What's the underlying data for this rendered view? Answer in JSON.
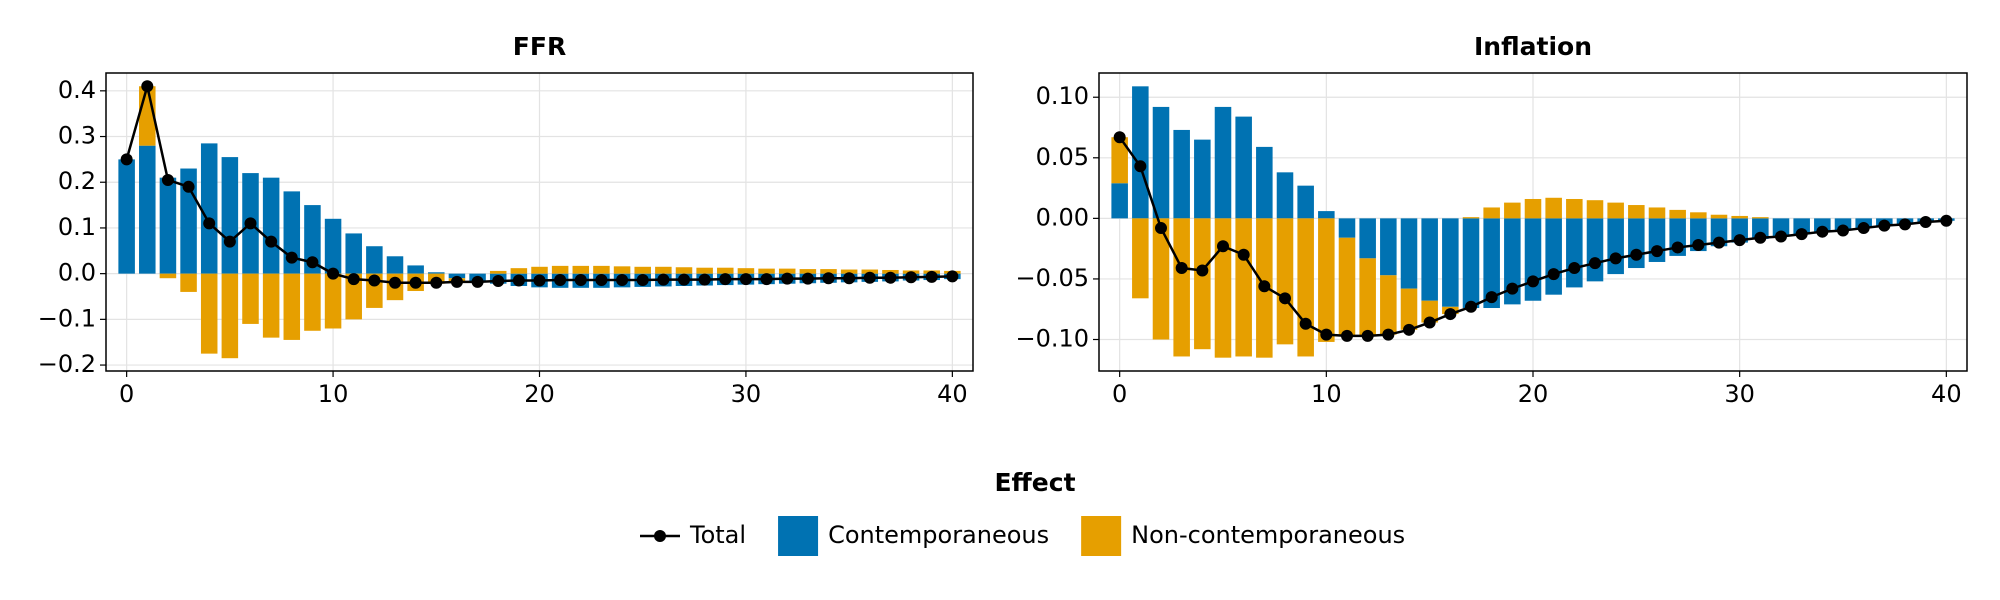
{
  "chart_data": [
    {
      "type": "bar",
      "title": "FFR",
      "stacked": true,
      "grid": true,
      "x": [
        0,
        1,
        2,
        3,
        4,
        5,
        6,
        7,
        8,
        9,
        10,
        11,
        12,
        13,
        14,
        15,
        16,
        17,
        18,
        19,
        20,
        21,
        22,
        23,
        24,
        25,
        26,
        27,
        28,
        29,
        30,
        31,
        32,
        33,
        34,
        35,
        36,
        37,
        38,
        39,
        40
      ],
      "xlim": [
        -1,
        41
      ],
      "xticks": [
        0,
        10,
        20,
        30,
        40
      ],
      "ylim": [
        -0.213,
        0.439
      ],
      "yticks": [
        {
          "value": -0.2,
          "label": "−0.2"
        },
        {
          "value": -0.1,
          "label": "−0.1"
        },
        {
          "value": 0,
          "label": "0.0"
        },
        0.1,
        0.2,
        0.3,
        0.4
      ],
      "series": [
        {
          "name": "Total",
          "kind": "line",
          "color": "#000000",
          "values": [
            0.25,
            0.41,
            0.205,
            0.19,
            0.11,
            0.07,
            0.11,
            0.07,
            0.035,
            0.025,
            0.0,
            -0.012,
            -0.015,
            -0.02,
            -0.02,
            -0.02,
            -0.018,
            -0.018,
            -0.016,
            -0.015,
            -0.015,
            -0.014,
            -0.014,
            -0.014,
            -0.014,
            -0.014,
            -0.013,
            -0.013,
            -0.013,
            -0.012,
            -0.012,
            -0.012,
            -0.011,
            -0.011,
            -0.01,
            -0.01,
            -0.009,
            -0.009,
            -0.008,
            -0.007,
            -0.006
          ]
        },
        {
          "name": "Contemporaneous",
          "kind": "bar",
          "color": "#0072b2",
          "values": [
            0.25,
            0.28,
            0.21,
            0.23,
            0.285,
            0.255,
            0.22,
            0.21,
            0.18,
            0.15,
            0.12,
            0.088,
            0.06,
            0.038,
            0.018,
            0.003,
            -0.01,
            -0.018,
            -0.022,
            -0.027,
            -0.03,
            -0.031,
            -0.031,
            -0.031,
            -0.03,
            -0.029,
            -0.028,
            -0.027,
            -0.026,
            -0.025,
            -0.024,
            -0.023,
            -0.022,
            -0.021,
            -0.02,
            -0.019,
            -0.018,
            -0.017,
            -0.015,
            -0.014,
            -0.012
          ]
        },
        {
          "name": "Non-contemporaneous",
          "kind": "bar",
          "color": "#e69f00",
          "values": [
            0.0,
            0.13,
            -0.01,
            -0.04,
            -0.175,
            -0.185,
            -0.11,
            -0.14,
            -0.145,
            -0.125,
            -0.12,
            -0.1,
            -0.075,
            -0.058,
            -0.038,
            -0.022,
            -0.008,
            0.0,
            0.006,
            0.012,
            0.015,
            0.017,
            0.017,
            0.017,
            0.016,
            0.015,
            0.015,
            0.014,
            0.013,
            0.013,
            0.012,
            0.011,
            0.011,
            0.01,
            0.01,
            0.009,
            0.009,
            0.008,
            0.007,
            0.007,
            0.006
          ]
        }
      ]
    },
    {
      "type": "bar",
      "title": "Inflation",
      "stacked": true,
      "grid": true,
      "x": [
        0,
        1,
        2,
        3,
        4,
        5,
        6,
        7,
        8,
        9,
        10,
        11,
        12,
        13,
        14,
        15,
        16,
        17,
        18,
        19,
        20,
        21,
        22,
        23,
        24,
        25,
        26,
        27,
        28,
        29,
        30,
        31,
        32,
        33,
        34,
        35,
        36,
        37,
        38,
        39,
        40
      ],
      "xlim": [
        -1,
        41
      ],
      "xticks": [
        0,
        10,
        20,
        30,
        40
      ],
      "ylim": [
        -0.126,
        0.12
      ],
      "yticks": [
        {
          "value": -0.1,
          "label": "−0.10"
        },
        {
          "value": -0.05,
          "label": "−0.05"
        },
        {
          "value": 0,
          "label": "0.00"
        },
        0.05,
        {
          "value": 0.1,
          "label": "0.10"
        }
      ],
      "series": [
        {
          "name": "Total",
          "kind": "line",
          "color": "#000000",
          "values": [
            0.067,
            0.043,
            -0.008,
            -0.041,
            -0.043,
            -0.023,
            -0.03,
            -0.056,
            -0.066,
            -0.087,
            -0.096,
            -0.097,
            -0.097,
            -0.096,
            -0.092,
            -0.086,
            -0.079,
            -0.073,
            -0.065,
            -0.058,
            -0.052,
            -0.046,
            -0.041,
            -0.037,
            -0.033,
            -0.03,
            -0.027,
            -0.024,
            -0.022,
            -0.02,
            -0.018,
            -0.016,
            -0.015,
            -0.013,
            -0.011,
            -0.01,
            -0.008,
            -0.006,
            -0.005,
            -0.003,
            -0.002
          ]
        },
        {
          "name": "Contemporaneous",
          "kind": "bar",
          "color": "#0072b2",
          "values": [
            0.029,
            0.109,
            0.092,
            0.073,
            0.065,
            0.092,
            0.084,
            0.059,
            0.038,
            0.027,
            0.006,
            -0.016,
            -0.033,
            -0.047,
            -0.058,
            -0.068,
            -0.073,
            -0.074,
            -0.074,
            -0.071,
            -0.068,
            -0.063,
            -0.057,
            -0.052,
            -0.046,
            -0.041,
            -0.036,
            -0.031,
            -0.027,
            -0.023,
            -0.02,
            -0.017,
            -0.015,
            -0.013,
            -0.011,
            -0.01,
            -0.008,
            -0.006,
            -0.005,
            -0.003,
            -0.002
          ]
        },
        {
          "name": "Non-contemporaneous",
          "kind": "bar",
          "color": "#e69f00",
          "values": [
            0.038,
            -0.066,
            -0.1,
            -0.114,
            -0.108,
            -0.115,
            -0.114,
            -0.115,
            -0.104,
            -0.114,
            -0.102,
            -0.081,
            -0.064,
            -0.049,
            -0.034,
            -0.018,
            -0.006,
            0.001,
            0.009,
            0.013,
            0.016,
            0.017,
            0.016,
            0.015,
            0.013,
            0.011,
            0.009,
            0.007,
            0.005,
            0.003,
            0.002,
            0.001,
            0,
            0,
            0,
            0,
            0,
            0,
            0,
            0,
            0
          ]
        }
      ]
    }
  ],
  "legend": {
    "title": "Effect"
  }
}
